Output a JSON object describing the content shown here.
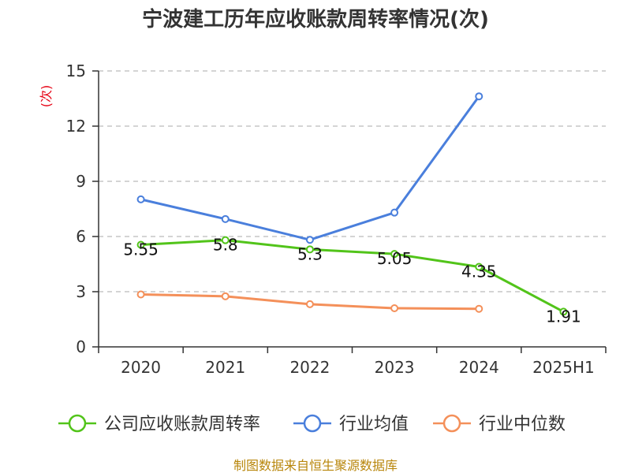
{
  "chart_data": {
    "type": "line",
    "title": "宁波建工历年应收账款周转率情况(次)",
    "ylabel": "(次)",
    "categories": [
      "2020",
      "2021",
      "2022",
      "2023",
      "2024",
      "2025H1"
    ],
    "ylim": [
      0,
      15
    ],
    "yticks": [
      0,
      3,
      6,
      9,
      12,
      15
    ],
    "grid": true,
    "legend_position": "bottom",
    "series": [
      {
        "name": "公司应收账款周转率",
        "color": "#52c41a",
        "values": [
          5.55,
          5.8,
          5.3,
          5.05,
          4.35,
          1.91
        ],
        "labels": [
          "5.55",
          "5.8",
          "5.3",
          "5.05",
          "4.35",
          "1.91"
        ]
      },
      {
        "name": "行业均值",
        "color": "#4a7fdc",
        "values": [
          8.02,
          6.95,
          5.82,
          7.3,
          13.62,
          null
        ]
      },
      {
        "name": "行业中位数",
        "color": "#f4905a",
        "values": [
          2.85,
          2.75,
          2.32,
          2.1,
          2.07,
          null
        ]
      }
    ],
    "source": "制图数据来自恒生聚源数据库"
  }
}
